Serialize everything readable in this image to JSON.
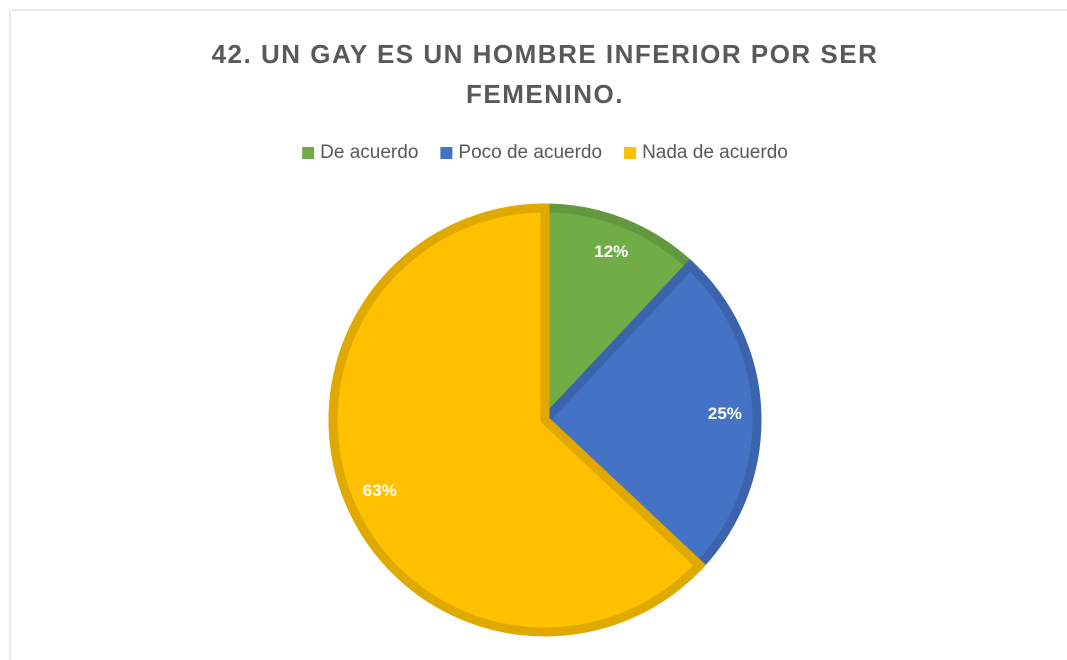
{
  "chart_data": {
    "type": "pie",
    "title": "42. UN GAY ES UN HOMBRE INFERIOR POR SER FEMENINO.",
    "categories": [
      "De acuerdo",
      "Poco de acuerdo",
      "Nada de acuerdo"
    ],
    "values": [
      12,
      25,
      63
    ],
    "value_labels": [
      "12%",
      "25%",
      "63%"
    ],
    "colors": [
      "#70ad47",
      "#4472c4",
      "#ffc000"
    ],
    "legend": "top"
  }
}
